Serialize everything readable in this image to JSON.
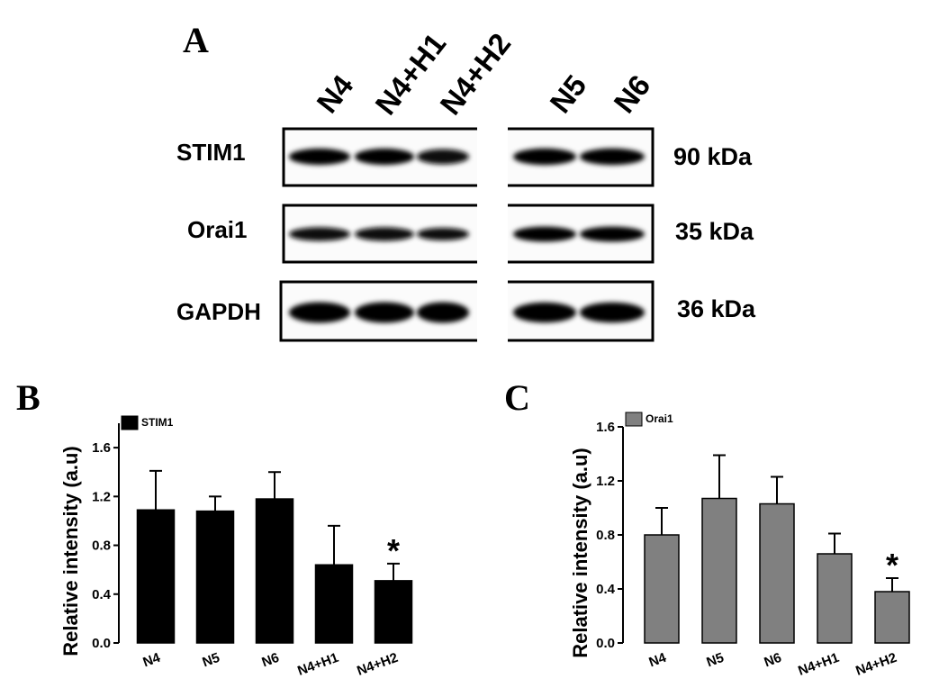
{
  "blot": {
    "panel_letter": "A",
    "lanes": [
      "N4",
      "N4+H1",
      "N4+H2",
      "N5",
      "N6"
    ],
    "rows": [
      {
        "protein": "STIM1",
        "size": "90 kDa",
        "band_intensity": [
          0.92,
          0.92,
          0.75,
          0.95,
          0.95
        ]
      },
      {
        "protein": "Orai1",
        "size": "35 kDa",
        "band_intensity": [
          0.8,
          0.8,
          0.65,
          1.0,
          1.0
        ]
      },
      {
        "protein": "GAPDH",
        "size": "36 kDa",
        "band_intensity": [
          1.0,
          1.0,
          1.0,
          0.95,
          0.95
        ]
      }
    ]
  },
  "chart_data": [
    {
      "panel_letter": "B",
      "type": "bar",
      "categories": [
        "N4",
        "N5",
        "N6",
        "N4+H1",
        "N4+H2"
      ],
      "series": [
        {
          "name": "STIM1",
          "values": [
            1.09,
            1.08,
            1.18,
            0.64,
            0.51
          ],
          "errors": [
            0.32,
            0.12,
            0.22,
            0.32,
            0.14
          ],
          "color": "#000000"
        }
      ],
      "significance": [
        "",
        "",
        "",
        "",
        "*"
      ],
      "ylabel": "Relative intensity (a.u)",
      "xlabel": "",
      "ylim": [
        0,
        1.8
      ],
      "yticks": [
        "0.0",
        "0.4",
        "0.8",
        "1.2",
        "1.6"
      ],
      "legend": "top-left"
    },
    {
      "panel_letter": "C",
      "type": "bar",
      "categories": [
        "N4",
        "N5",
        "N6",
        "N4+H1",
        "N4+H2"
      ],
      "series": [
        {
          "name": "Orai1",
          "values": [
            0.8,
            1.07,
            1.03,
            0.66,
            0.38
          ],
          "errors": [
            0.2,
            0.32,
            0.2,
            0.15,
            0.1
          ],
          "color": "#808080"
        }
      ],
      "significance": [
        "",
        "",
        "",
        "",
        "*"
      ],
      "ylabel": "Relative intensity (a.u)",
      "xlabel": "",
      "ylim": [
        0,
        1.6
      ],
      "yticks": [
        "0.0",
        "0.4",
        "0.8",
        "1.2",
        "1.6"
      ],
      "legend": "top-left"
    }
  ]
}
